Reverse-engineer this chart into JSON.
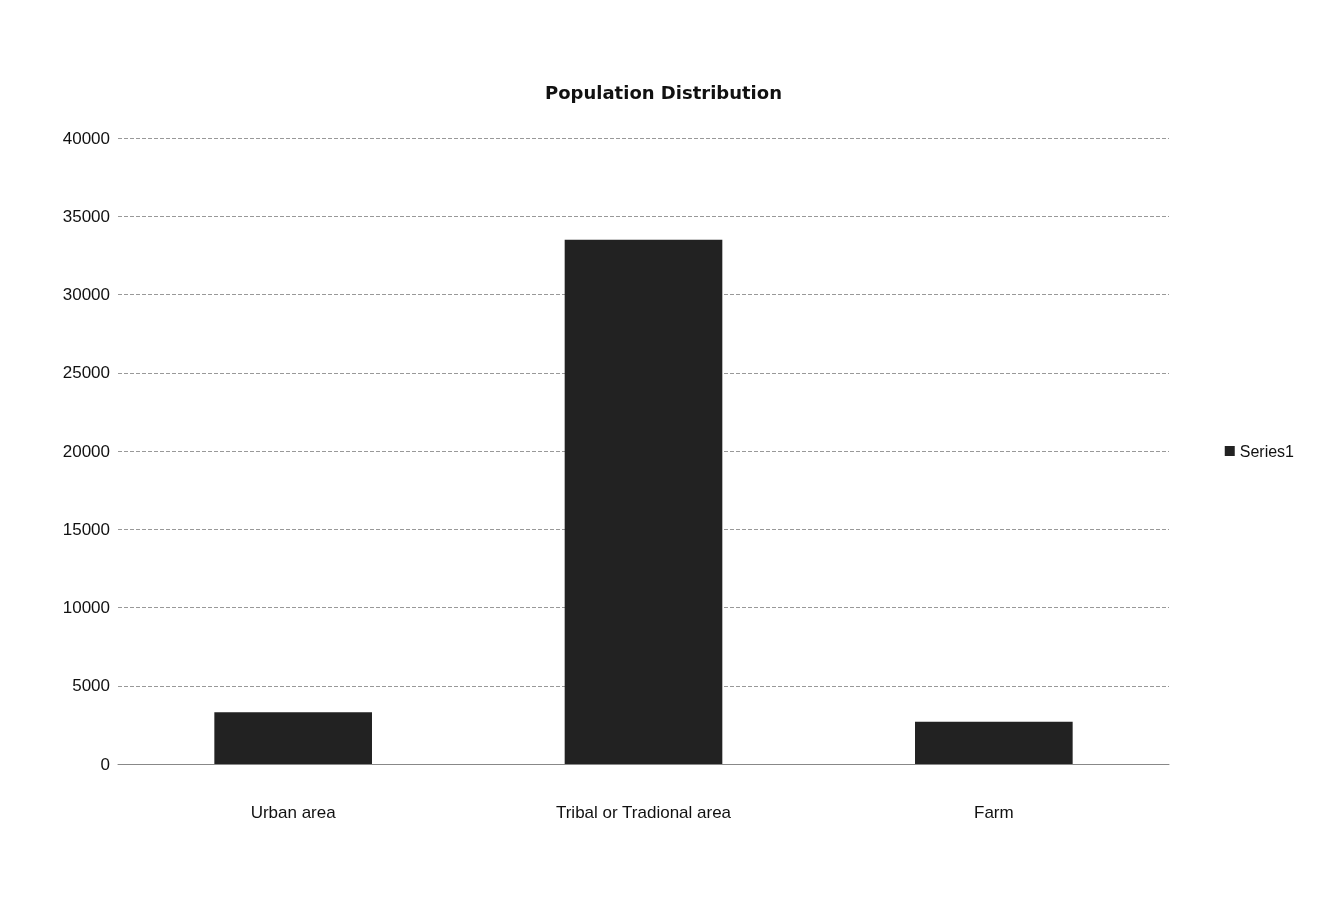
{
  "chart_data": {
    "type": "bar",
    "title": "Population Distribution",
    "categories": [
      "Urban area",
      "Tribal or Tradional area",
      "Farm"
    ],
    "series": [
      {
        "name": "Series1",
        "color": "#222222",
        "values": [
          3300,
          33500,
          2700
        ]
      }
    ],
    "ylim": [
      0,
      40000
    ],
    "yticks": [
      0,
      5000,
      10000,
      15000,
      20000,
      25000,
      30000,
      35000,
      40000
    ],
    "grid": "y",
    "legend": "right"
  }
}
